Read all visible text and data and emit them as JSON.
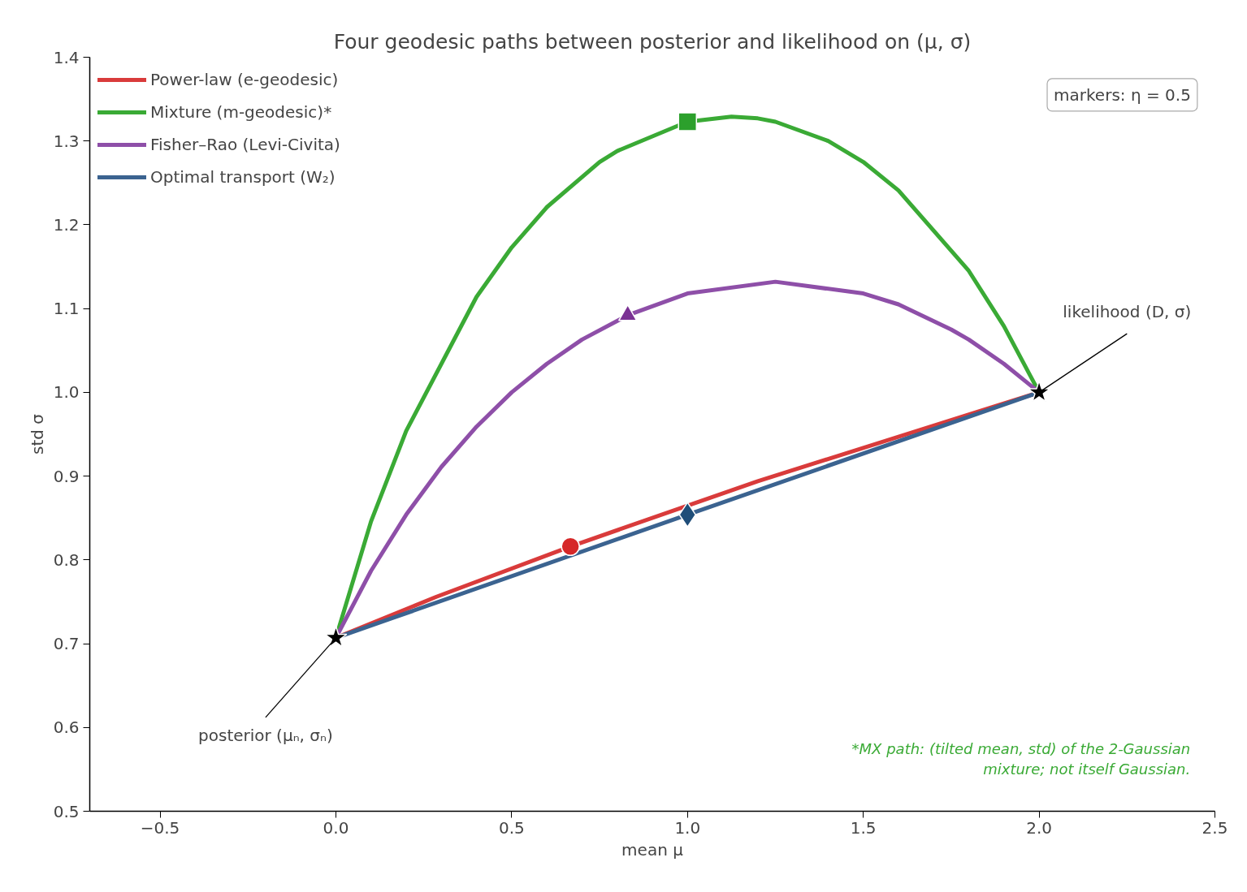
{
  "chart_data": {
    "type": "line",
    "title": "Four geodesic paths between posterior and likelihood on (μ, σ)",
    "xlabel": "mean μ",
    "ylabel": "std σ",
    "xlim": [
      -0.7,
      2.5
    ],
    "ylim": [
      0.5,
      1.4
    ],
    "xticks": [
      {
        "value": -0.5,
        "label": "−0.5"
      },
      {
        "value": 0.0,
        "label": "0.0"
      },
      {
        "value": 0.5,
        "label": "0.5"
      },
      {
        "value": 1.0,
        "label": "1.0"
      },
      {
        "value": 1.5,
        "label": "1.5"
      },
      {
        "value": 2.0,
        "label": "2.0"
      },
      {
        "value": 2.5,
        "label": "2.5"
      }
    ],
    "yticks": [
      {
        "value": 0.5,
        "label": "0.5"
      },
      {
        "value": 0.6,
        "label": "0.6"
      },
      {
        "value": 0.7,
        "label": "0.7"
      },
      {
        "value": 0.8,
        "label": "0.8"
      },
      {
        "value": 0.9,
        "label": "0.9"
      },
      {
        "value": 1.0,
        "label": "1.0"
      },
      {
        "value": 1.1,
        "label": "1.1"
      },
      {
        "value": 1.2,
        "label": "1.2"
      },
      {
        "value": 1.3,
        "label": "1.3"
      },
      {
        "value": 1.4,
        "label": "1.4"
      }
    ],
    "grid": false,
    "legend": "top left",
    "line_style": "solid",
    "series": [
      {
        "name": "Power-law (e-geodesic)",
        "color": "#d93b3b",
        "x": [
          0,
          0.286,
          0.667,
          1.2,
          2.0
        ],
        "values": [
          0.707,
          0.756,
          0.816,
          0.894,
          1.0
        ]
      },
      {
        "name": "Mixture (m-geodesic)*",
        "color": "#3aaa35",
        "x": [
          0,
          0.1,
          0.2,
          0.4,
          0.5,
          0.6,
          0.75,
          0.8,
          1.0,
          1.125,
          1.2,
          1.25,
          1.4,
          1.5,
          1.6,
          1.8,
          1.9,
          2.0
        ],
        "values": [
          0.707,
          0.846,
          0.954,
          1.114,
          1.173,
          1.221,
          1.275,
          1.288,
          1.323,
          1.329,
          1.327,
          1.323,
          1.3,
          1.275,
          1.241,
          1.145,
          1.079,
          1.0
        ]
      },
      {
        "name": "Fisher–Rao (Levi-Civita)",
        "color": "#8e4fa8",
        "x": [
          0,
          0.1,
          0.2,
          0.3,
          0.4,
          0.5,
          0.6,
          0.7,
          0.83,
          1.0,
          1.25,
          1.5,
          1.6,
          1.75,
          1.8,
          1.9,
          2.0
        ],
        "values": [
          0.707,
          0.787,
          0.854,
          0.911,
          0.959,
          1.0,
          1.034,
          1.063,
          1.092,
          1.118,
          1.132,
          1.118,
          1.105,
          1.075,
          1.063,
          1.034,
          1.0
        ]
      },
      {
        "name": "Optimal transport (W₂)",
        "color": "#3b6390",
        "x": [
          0,
          1.0,
          2.0
        ],
        "values": [
          0.707,
          0.854,
          1.0
        ]
      },
      {
        "type": "scatter",
        "marker": "circle",
        "color": "#d62728",
        "x": [
          0.667
        ],
        "values": [
          0.816
        ]
      },
      {
        "type": "scatter",
        "marker": "square",
        "color": "#2ca02c",
        "x": [
          1.0
        ],
        "values": [
          1.323
        ]
      },
      {
        "type": "scatter",
        "marker": "triangle",
        "color": "#7b3294",
        "x": [
          0.83
        ],
        "values": [
          1.092
        ]
      },
      {
        "type": "scatter",
        "marker": "diamond",
        "color": "#1f4e79",
        "x": [
          1.0
        ],
        "values": [
          0.854
        ]
      },
      {
        "type": "scatter",
        "marker": "star",
        "color": "#000000",
        "x": [
          0,
          2.0
        ],
        "values": [
          0.707,
          1.0
        ]
      }
    ],
    "annotations": [
      {
        "text": "likelihood (D, σ)",
        "x": 2.0,
        "y": 1.0
      },
      {
        "text": "posterior (μₙ, σₙ)",
        "x": 0.0,
        "y": 0.707
      },
      "markers: η = 0.5",
      "*MX path: (tilted mean, std) of the 2-Gaussian\nmixture; not itself Gaussian."
    ]
  }
}
